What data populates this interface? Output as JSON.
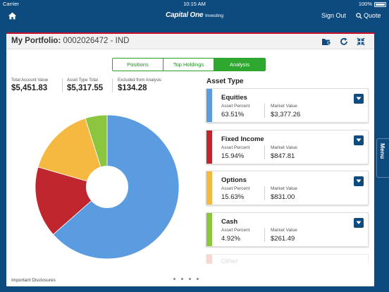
{
  "status_bar": {
    "carrier": "Carrier",
    "time": "10:15 AM",
    "battery": "100%"
  },
  "nav": {
    "logo_main": "Capital One",
    "logo_sub": "Investing",
    "sign_out": "Sign Out",
    "quote": "Quote"
  },
  "portfolio": {
    "title": "My Portfolio:",
    "account": "0002026472 - IND"
  },
  "tabs": [
    {
      "label": "Positions",
      "active": false
    },
    {
      "label": "Top Holdings",
      "active": false
    },
    {
      "label": "Analysis",
      "active": true
    }
  ],
  "summary": [
    {
      "label": "Total Account Value",
      "value": "$5,451.83"
    },
    {
      "label": "Asset Type Total",
      "value": "$5,317.55"
    },
    {
      "label": "Excluded from Analysis",
      "value": "$134.28"
    }
  ],
  "asset_type_title": "Asset Type",
  "asset_cards": [
    {
      "name": "Equities",
      "percent_label": "Asset Percent",
      "percent": "63.51%",
      "market_label": "Market Value",
      "market": "$3,377.26",
      "color": "#5b9be0"
    },
    {
      "name": "Fixed Income",
      "percent_label": "Asset Percent",
      "percent": "15.94%",
      "market_label": "Market Value",
      "market": "$847.81",
      "color": "#c0262d"
    },
    {
      "name": "Options",
      "percent_label": "Asset Percent",
      "percent": "15.63%",
      "market_label": "Market Value",
      "market": "$831.00",
      "color": "#f5b942"
    },
    {
      "name": "Cash",
      "percent_label": "Asset Percent",
      "percent": "4.92%",
      "market_label": "Market Value",
      "market": "$261.49",
      "color": "#8cc63f"
    },
    {
      "name": "Other",
      "partial": true,
      "color": "#f0b0a0"
    }
  ],
  "chart_data": {
    "type": "pie",
    "title": "",
    "slices": [
      {
        "label": "Equities",
        "value": 63.51,
        "color": "#5b9be0"
      },
      {
        "label": "Fixed Income",
        "value": 15.94,
        "color": "#c0262d"
      },
      {
        "label": "Options",
        "value": 15.63,
        "color": "#f5b942"
      },
      {
        "label": "Cash",
        "value": 4.92,
        "color": "#8cc63f"
      }
    ],
    "donut": true
  },
  "footer": {
    "disclosures": "Important Disclosures"
  },
  "side_menu": {
    "label": "Menu"
  },
  "icons": {
    "home": "home-icon",
    "search": "search-icon",
    "folder": "folder-icon",
    "refresh": "refresh-icon",
    "collapse": "collapse-icon",
    "dropdown": "chevron-down-icon"
  }
}
